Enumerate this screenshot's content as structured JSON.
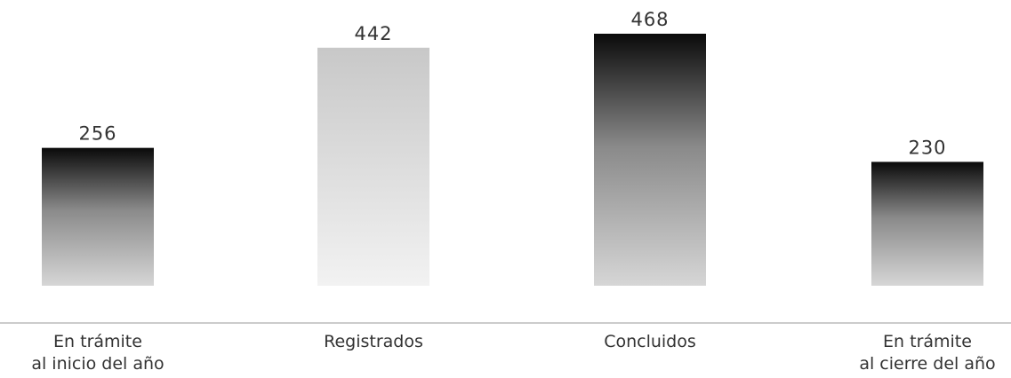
{
  "chart_data": {
    "type": "bar",
    "categories": [
      [
        "En trámite",
        "al inicio del año"
      ],
      [
        "Registrados"
      ],
      [
        "Concluidos"
      ],
      [
        "En trámite",
        "al cierre del año"
      ]
    ],
    "values": [
      256,
      442,
      468,
      230
    ],
    "data_labels": [
      "256",
      "442",
      "468",
      "230"
    ],
    "title": "",
    "xlabel": "",
    "ylabel": "",
    "ylim": [
      0,
      468
    ],
    "grid": false,
    "legend": "none",
    "colors": {
      "dark": "#0a0a0a",
      "mid": "#8a8a8a",
      "light": "#d6d6d6",
      "faded_top": "#c8c8c8",
      "faded_bottom": "#f2f2f2",
      "axis": "#9a9a9a"
    },
    "bar_styles": [
      "gradient",
      "faded",
      "gradient",
      "gradient"
    ]
  }
}
